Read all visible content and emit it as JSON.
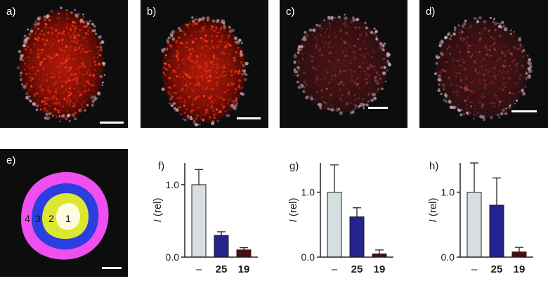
{
  "panels": [
    {
      "label": "a)",
      "kind": "bright"
    },
    {
      "label": "b)",
      "kind": "bright"
    },
    {
      "label": "c)",
      "kind": "dim"
    },
    {
      "label": "d)",
      "kind": "dim"
    }
  ],
  "zone_panel": {
    "label": "e)",
    "zones": [
      "1",
      "2",
      "3",
      "4"
    ],
    "colors": {
      "1": "#fffbe0",
      "2": "#dce830",
      "3": "#2b3ee0",
      "4": "#f04ff0"
    }
  },
  "colors": {
    "control": "#d8dfe2",
    "compound_25": "#24238f",
    "compound_19": "#4a0e0e"
  },
  "chart_data": [
    {
      "type": "bar",
      "panel_label": "f)",
      "categories": [
        "–",
        "25",
        "19"
      ],
      "values": [
        1.0,
        0.3,
        0.1
      ],
      "errors": [
        0.21,
        0.05,
        0.03
      ],
      "ylabel_italic": "I",
      "ylabel_rest": " (rel)",
      "yticks": [
        0.0,
        1.0
      ],
      "ylim": [
        0,
        1.3
      ]
    },
    {
      "type": "bar",
      "panel_label": "g)",
      "categories": [
        "–",
        "25",
        "19"
      ],
      "values": [
        1.0,
        0.62,
        0.05
      ],
      "errors": [
        0.42,
        0.14,
        0.06
      ],
      "ylabel_italic": "I",
      "ylabel_rest": " (rel)",
      "yticks": [
        0.0,
        1.0
      ],
      "ylim": [
        0,
        1.45
      ]
    },
    {
      "type": "bar",
      "panel_label": "h)",
      "categories": [
        "–",
        "25",
        "19"
      ],
      "values": [
        1.0,
        0.8,
        0.08
      ],
      "errors": [
        0.45,
        0.42,
        0.07
      ],
      "ylabel_italic": "I",
      "ylabel_rest": " (rel)",
      "yticks": [
        0.0,
        1.0
      ],
      "ylim": [
        0,
        1.45
      ]
    }
  ]
}
